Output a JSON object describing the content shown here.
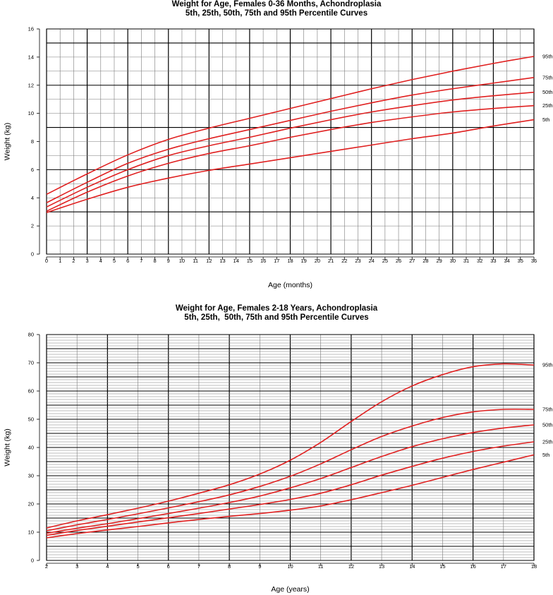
{
  "chart_data": [
    {
      "type": "line",
      "title": "Weight for Age, Females 0-36 Months, Achondroplasia",
      "subtitle": "5th, 25th, 50th, 75th and 95th Percentile Curves",
      "xlabel": "Age (months)",
      "ylabel": "Weight (kg)",
      "xlim": [
        0,
        36
      ],
      "ylim": [
        0,
        16
      ],
      "xticks": [
        0,
        1,
        2,
        3,
        4,
        5,
        6,
        7,
        8,
        9,
        10,
        11,
        12,
        13,
        14,
        15,
        16,
        17,
        18,
        19,
        20,
        21,
        22,
        23,
        24,
        25,
        26,
        27,
        28,
        29,
        30,
        31,
        32,
        33,
        34,
        35,
        36
      ],
      "yticks": [
        0,
        2,
        4,
        6,
        8,
        10,
        12,
        14,
        16
      ],
      "grid": true,
      "legend": "labels at right end of curves",
      "line_color": "#e02020",
      "x": [
        0,
        3,
        6,
        9,
        12,
        15,
        18,
        21,
        24,
        27,
        30,
        33,
        36
      ],
      "series": [
        {
          "name": "95th",
          "values": [
            4.25,
            5.7,
            7.05,
            8.15,
            8.95,
            9.65,
            10.35,
            11.05,
            11.75,
            12.4,
            13.0,
            13.55,
            14.05
          ]
        },
        {
          "name": "75th",
          "values": [
            3.65,
            5.1,
            6.45,
            7.45,
            8.2,
            8.85,
            9.5,
            10.15,
            10.75,
            11.3,
            11.75,
            12.15,
            12.55
          ]
        },
        {
          "name": "50th",
          "values": [
            3.35,
            4.75,
            6.0,
            7.0,
            7.7,
            8.3,
            8.95,
            9.55,
            10.1,
            10.55,
            10.95,
            11.25,
            11.5
          ]
        },
        {
          "name": "25th",
          "values": [
            3.05,
            4.4,
            5.55,
            6.45,
            7.15,
            7.7,
            8.3,
            8.85,
            9.35,
            9.75,
            10.1,
            10.35,
            10.55
          ]
        },
        {
          "name": "5th",
          "values": [
            2.95,
            3.9,
            4.75,
            5.4,
            5.95,
            6.4,
            6.85,
            7.3,
            7.75,
            8.2,
            8.6,
            9.1,
            9.55
          ]
        }
      ]
    },
    {
      "type": "line",
      "title": "Weight for Age, Females 2-18 Years, Achondroplasia",
      "subtitle": "5th, 25th,  50th, 75th and 95th Percentile Curves",
      "xlabel": "Age (years)",
      "ylabel": "Weight (kg)",
      "xlim": [
        2,
        18
      ],
      "ylim": [
        0,
        80
      ],
      "xticks": [
        2,
        3,
        4,
        5,
        6,
        7,
        8,
        9,
        10,
        11,
        12,
        13,
        14,
        15,
        16,
        17,
        18
      ],
      "yticks": [
        0,
        10,
        20,
        30,
        40,
        50,
        60,
        70,
        80
      ],
      "grid": true,
      "legend": "labels at right end of curves",
      "line_color": "#e02020",
      "x": [
        2,
        3,
        4,
        5,
        6,
        7,
        8,
        9,
        10,
        11,
        12,
        13,
        14,
        15,
        16,
        17,
        18
      ],
      "series": [
        {
          "name": "95th",
          "values": [
            11.5,
            14.0,
            16.2,
            18.5,
            21.0,
            23.8,
            26.8,
            30.6,
            35.5,
            41.8,
            49.2,
            56.2,
            61.8,
            65.8,
            68.6,
            69.6,
            69.2
          ]
        },
        {
          "name": "75th",
          "values": [
            10.5,
            12.6,
            14.5,
            16.5,
            18.6,
            20.8,
            23.2,
            26.2,
            29.8,
            34.2,
            39.2,
            43.9,
            47.6,
            50.6,
            52.6,
            53.5,
            53.5
          ]
        },
        {
          "name": "50th",
          "values": [
            9.6,
            11.4,
            13.0,
            14.8,
            16.6,
            18.5,
            20.5,
            22.8,
            25.7,
            29.0,
            32.9,
            36.8,
            40.3,
            43.1,
            45.3,
            46.9,
            48.0
          ]
        },
        {
          "name": "25th",
          "values": [
            8.9,
            10.6,
            12.1,
            13.6,
            15.1,
            16.6,
            18.2,
            19.8,
            21.6,
            23.8,
            26.8,
            30.2,
            33.3,
            36.2,
            38.6,
            40.5,
            42.0
          ]
        },
        {
          "name": "5th",
          "values": [
            8.0,
            9.5,
            10.8,
            12.0,
            13.3,
            14.5,
            15.6,
            16.6,
            17.8,
            19.3,
            21.5,
            24.0,
            26.6,
            29.4,
            32.2,
            34.8,
            37.4
          ]
        }
      ]
    }
  ]
}
